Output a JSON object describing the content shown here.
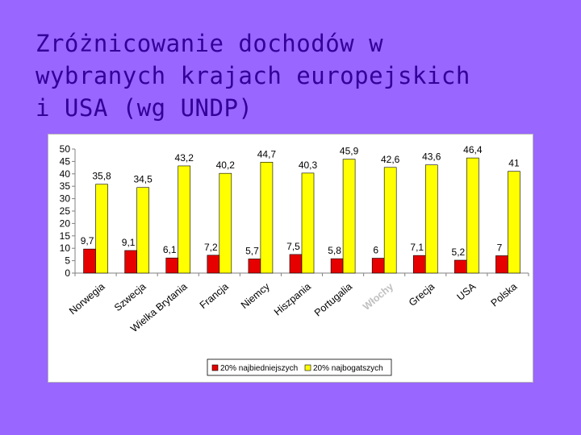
{
  "slide": {
    "title_lines": [
      "Zróżnicowanie dochodów w",
      "wybranych krajach europejskich",
      "i USA (wg UNDP)"
    ]
  },
  "colors": {
    "background": "#9966ff",
    "title": "#330099",
    "series_poorest": "#e60000",
    "series_richest": "#ffff00",
    "watermark": "#c0c0c0"
  },
  "chart_data": {
    "type": "bar",
    "categories": [
      "Norwegia",
      "Szwecja",
      "Wielka Brytania",
      "Francja",
      "Niemcy",
      "Hiszpania",
      "Portugalia",
      "Włochy",
      "Grecja",
      "USA",
      "Polska"
    ],
    "series": [
      {
        "name": "20% najbiedniejszych",
        "values": [
          9.7,
          9.1,
          6.1,
          7.2,
          5.7,
          7.5,
          5.8,
          6,
          7.1,
          5.2,
          7
        ]
      },
      {
        "name": "20% najbogatszych",
        "values": [
          35.8,
          34.5,
          43.2,
          40.2,
          44.7,
          40.3,
          45.9,
          42.6,
          43.6,
          46.4,
          41
        ]
      }
    ],
    "value_labels": [
      [
        "9,7",
        "9,1",
        "6,1",
        "7,2",
        "5,7",
        "7,5",
        "5,8",
        "6",
        "7,1",
        "5,2",
        "7"
      ],
      [
        "35,8",
        "34,5",
        "43,2",
        "40,2",
        "44,7",
        "40,3",
        "45,9",
        "42,6",
        "43,6",
        "46,4",
        "41"
      ]
    ],
    "yticks": [
      0,
      5,
      10,
      15,
      20,
      25,
      30,
      35,
      40,
      45,
      50
    ],
    "ylim": [
      0,
      50
    ],
    "grid": false,
    "legend_position": "bottom",
    "title": "",
    "xlabel": "",
    "ylabel": ""
  }
}
